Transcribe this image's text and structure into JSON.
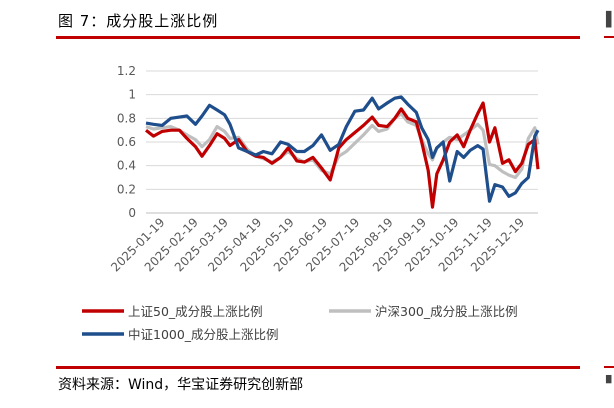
{
  "figure": {
    "title": "图 7：成分股上涨比例",
    "source": "资料来源：Wind，华宝证券研究创新部"
  },
  "colors": {
    "rule": "#c00000",
    "sz50": "#c00000",
    "hs300": "#bfbfbf",
    "zz1000": "#1f4e8c",
    "grid": "#d9d9d9"
  },
  "chart_data": {
    "type": "line",
    "title": "",
    "xlabel": "",
    "ylabel": "",
    "ylim": [
      0,
      1.2
    ],
    "yticks": [
      "0",
      "0.2",
      "0.4",
      "0.6",
      "0.8",
      "1",
      "1.2"
    ],
    "xlim": [
      "2025-01-01",
      "2025-12-31"
    ],
    "xticks": [
      "2025-01-19",
      "2025-02-19",
      "2025-03-19",
      "2025-04-19",
      "2025-05-19",
      "2025-06-19",
      "2025-07-19",
      "2025-08-19",
      "2025-09-19",
      "2025-10-19",
      "2025-11-19",
      "2025-12-19"
    ],
    "grid": true,
    "legend": "bottom",
    "series": [
      {
        "name": "上证50_成分股上涨比例",
        "key": "sz50",
        "points": [
          [
            "2025-01-01",
            0.7
          ],
          [
            "2025-01-08",
            0.65
          ],
          [
            "2025-01-16",
            0.69
          ],
          [
            "2025-01-24",
            0.7
          ],
          [
            "2025-02-01",
            0.7
          ],
          [
            "2025-02-08",
            0.63
          ],
          [
            "2025-02-16",
            0.56
          ],
          [
            "2025-02-22",
            0.48
          ],
          [
            "2025-03-01",
            0.57
          ],
          [
            "2025-03-08",
            0.67
          ],
          [
            "2025-03-15",
            0.63
          ],
          [
            "2025-03-20",
            0.57
          ],
          [
            "2025-03-28",
            0.62
          ],
          [
            "2025-04-05",
            0.52
          ],
          [
            "2025-04-13",
            0.48
          ],
          [
            "2025-04-20",
            0.47
          ],
          [
            "2025-04-28",
            0.42
          ],
          [
            "2025-05-06",
            0.47
          ],
          [
            "2025-05-13",
            0.55
          ],
          [
            "2025-05-21",
            0.44
          ],
          [
            "2025-05-28",
            0.43
          ],
          [
            "2025-06-05",
            0.47
          ],
          [
            "2025-06-13",
            0.38
          ],
          [
            "2025-06-21",
            0.28
          ],
          [
            "2025-06-29",
            0.55
          ],
          [
            "2025-07-06",
            0.62
          ],
          [
            "2025-07-14",
            0.68
          ],
          [
            "2025-07-22",
            0.74
          ],
          [
            "2025-07-30",
            0.81
          ],
          [
            "2025-08-05",
            0.74
          ],
          [
            "2025-08-13",
            0.73
          ],
          [
            "2025-08-20",
            0.8
          ],
          [
            "2025-08-26",
            0.88
          ],
          [
            "2025-09-01",
            0.8
          ],
          [
            "2025-09-09",
            0.77
          ],
          [
            "2025-09-14",
            0.6
          ],
          [
            "2025-09-20",
            0.36
          ],
          [
            "2025-09-24",
            0.05
          ],
          [
            "2025-09-28",
            0.33
          ],
          [
            "2025-10-04",
            0.45
          ],
          [
            "2025-10-10",
            0.6
          ],
          [
            "2025-10-17",
            0.66
          ],
          [
            "2025-10-23",
            0.56
          ],
          [
            "2025-10-29",
            0.7
          ],
          [
            "2025-11-05",
            0.84
          ],
          [
            "2025-11-10",
            0.93
          ],
          [
            "2025-11-16",
            0.6
          ],
          [
            "2025-11-21",
            0.72
          ],
          [
            "2025-11-28",
            0.42
          ],
          [
            "2025-12-04",
            0.45
          ],
          [
            "2025-12-10",
            0.35
          ],
          [
            "2025-12-16",
            0.42
          ],
          [
            "2025-12-22",
            0.58
          ],
          [
            "2025-12-28",
            0.62
          ],
          [
            "2025-12-31",
            0.37
          ]
        ]
      },
      {
        "name": "沪深300_成分股上涨比例",
        "key": "hs300",
        "points": [
          [
            "2025-01-01",
            0.73
          ],
          [
            "2025-01-08",
            0.71
          ],
          [
            "2025-01-16",
            0.72
          ],
          [
            "2025-01-24",
            0.73
          ],
          [
            "2025-02-01",
            0.7
          ],
          [
            "2025-02-08",
            0.66
          ],
          [
            "2025-02-16",
            0.62
          ],
          [
            "2025-02-22",
            0.56
          ],
          [
            "2025-03-01",
            0.62
          ],
          [
            "2025-03-08",
            0.73
          ],
          [
            "2025-03-15",
            0.69
          ],
          [
            "2025-03-20",
            0.63
          ],
          [
            "2025-03-28",
            0.64
          ],
          [
            "2025-04-05",
            0.54
          ],
          [
            "2025-04-13",
            0.48
          ],
          [
            "2025-04-20",
            0.46
          ],
          [
            "2025-04-28",
            0.43
          ],
          [
            "2025-05-06",
            0.47
          ],
          [
            "2025-05-13",
            0.52
          ],
          [
            "2025-05-21",
            0.46
          ],
          [
            "2025-05-28",
            0.43
          ],
          [
            "2025-06-05",
            0.45
          ],
          [
            "2025-06-13",
            0.36
          ],
          [
            "2025-06-21",
            0.33
          ],
          [
            "2025-06-29",
            0.48
          ],
          [
            "2025-07-06",
            0.52
          ],
          [
            "2025-07-14",
            0.59
          ],
          [
            "2025-07-22",
            0.66
          ],
          [
            "2025-07-30",
            0.74
          ],
          [
            "2025-08-05",
            0.69
          ],
          [
            "2025-08-13",
            0.71
          ],
          [
            "2025-08-20",
            0.8
          ],
          [
            "2025-08-26",
            0.84
          ],
          [
            "2025-09-01",
            0.77
          ],
          [
            "2025-09-09",
            0.74
          ],
          [
            "2025-09-14",
            0.62
          ],
          [
            "2025-09-20",
            0.5
          ],
          [
            "2025-09-24",
            0.45
          ],
          [
            "2025-09-28",
            0.55
          ],
          [
            "2025-10-04",
            0.6
          ],
          [
            "2025-10-10",
            0.64
          ],
          [
            "2025-10-17",
            0.62
          ],
          [
            "2025-10-23",
            0.66
          ],
          [
            "2025-10-29",
            0.7
          ],
          [
            "2025-11-05",
            0.75
          ],
          [
            "2025-11-10",
            0.7
          ],
          [
            "2025-11-16",
            0.41
          ],
          [
            "2025-11-21",
            0.4
          ],
          [
            "2025-11-28",
            0.35
          ],
          [
            "2025-12-04",
            0.32
          ],
          [
            "2025-12-10",
            0.3
          ],
          [
            "2025-12-16",
            0.37
          ],
          [
            "2025-12-22",
            0.63
          ],
          [
            "2025-12-28",
            0.72
          ],
          [
            "2025-12-31",
            0.58
          ]
        ]
      },
      {
        "name": "中证1000_成分股上涨比例",
        "key": "zz1000",
        "points": [
          [
            "2025-01-01",
            0.76
          ],
          [
            "2025-01-08",
            0.75
          ],
          [
            "2025-01-16",
            0.74
          ],
          [
            "2025-01-24",
            0.8
          ],
          [
            "2025-02-01",
            0.81
          ],
          [
            "2025-02-08",
            0.82
          ],
          [
            "2025-02-16",
            0.75
          ],
          [
            "2025-02-22",
            0.82
          ],
          [
            "2025-03-01",
            0.91
          ],
          [
            "2025-03-08",
            0.87
          ],
          [
            "2025-03-15",
            0.83
          ],
          [
            "2025-03-20",
            0.75
          ],
          [
            "2025-03-28",
            0.55
          ],
          [
            "2025-04-05",
            0.52
          ],
          [
            "2025-04-13",
            0.49
          ],
          [
            "2025-04-20",
            0.52
          ],
          [
            "2025-04-28",
            0.5
          ],
          [
            "2025-05-06",
            0.6
          ],
          [
            "2025-05-13",
            0.58
          ],
          [
            "2025-05-21",
            0.52
          ],
          [
            "2025-05-28",
            0.52
          ],
          [
            "2025-06-05",
            0.57
          ],
          [
            "2025-06-13",
            0.66
          ],
          [
            "2025-06-21",
            0.53
          ],
          [
            "2025-06-29",
            0.58
          ],
          [
            "2025-07-06",
            0.73
          ],
          [
            "2025-07-14",
            0.86
          ],
          [
            "2025-07-22",
            0.87
          ],
          [
            "2025-07-30",
            0.97
          ],
          [
            "2025-08-05",
            0.88
          ],
          [
            "2025-08-13",
            0.93
          ],
          [
            "2025-08-20",
            0.97
          ],
          [
            "2025-08-26",
            0.98
          ],
          [
            "2025-09-01",
            0.92
          ],
          [
            "2025-09-09",
            0.85
          ],
          [
            "2025-09-14",
            0.72
          ],
          [
            "2025-09-20",
            0.62
          ],
          [
            "2025-09-24",
            0.47
          ],
          [
            "2025-09-28",
            0.55
          ],
          [
            "2025-10-04",
            0.6
          ],
          [
            "2025-10-10",
            0.27
          ],
          [
            "2025-10-17",
            0.52
          ],
          [
            "2025-10-23",
            0.47
          ],
          [
            "2025-10-29",
            0.53
          ],
          [
            "2025-11-05",
            0.57
          ],
          [
            "2025-11-10",
            0.54
          ],
          [
            "2025-11-16",
            0.1
          ],
          [
            "2025-11-21",
            0.24
          ],
          [
            "2025-11-28",
            0.22
          ],
          [
            "2025-12-04",
            0.14
          ],
          [
            "2025-12-10",
            0.17
          ],
          [
            "2025-12-16",
            0.25
          ],
          [
            "2025-12-22",
            0.3
          ],
          [
            "2025-12-28",
            0.65
          ],
          [
            "2025-12-31",
            0.7
          ]
        ]
      }
    ]
  }
}
